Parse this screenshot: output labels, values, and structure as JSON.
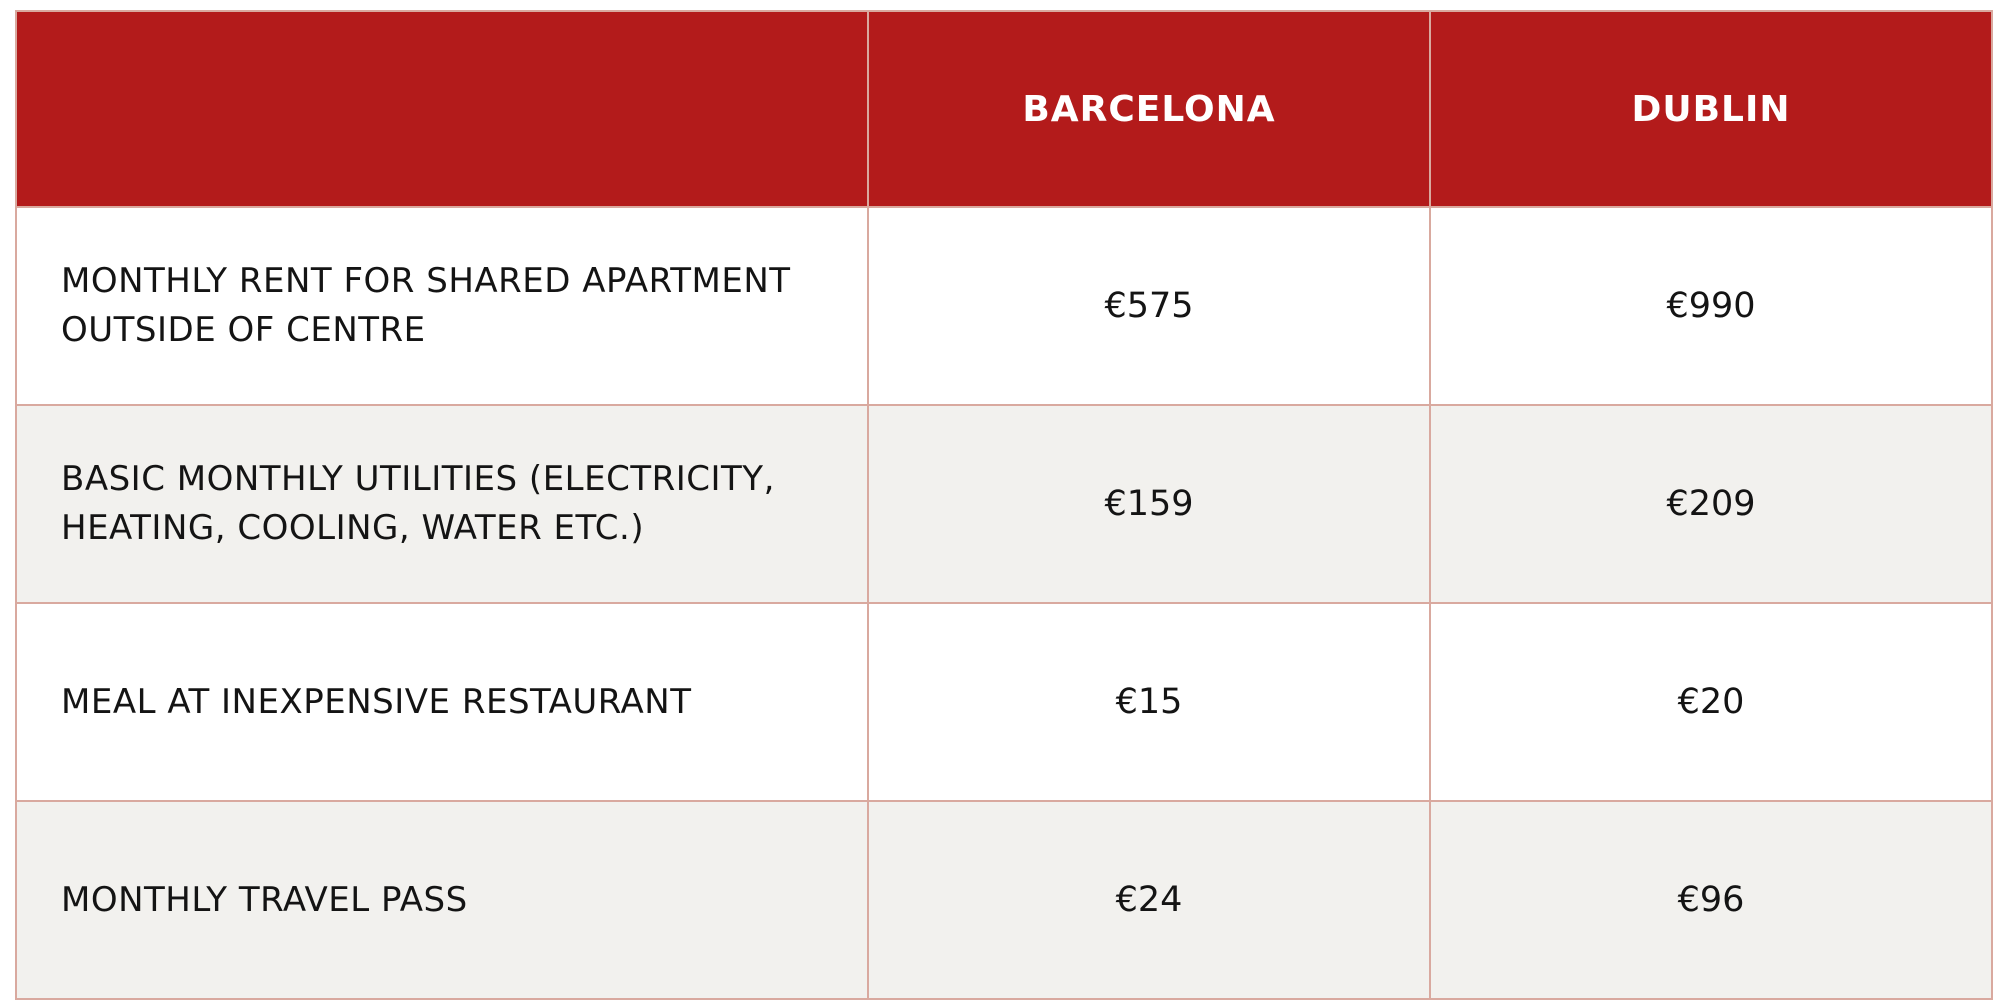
{
  "table": {
    "headers": [
      "",
      "BARCELONA",
      "DUBLIN"
    ],
    "rows": [
      {
        "label": "MONTHLY RENT FOR SHARED APARTMENT OUTSIDE OF CENTRE",
        "barcelona": "€575",
        "dublin": "€990"
      },
      {
        "label": "BASIC MONTHLY UTILITIES (ELECTRICITY, HEATING, COOLING, WATER ETC.)",
        "barcelona": "€159",
        "dublin": "€209"
      },
      {
        "label": "MEAL AT INEXPENSIVE RESTAURANT",
        "barcelona": "€15",
        "dublin": "€20"
      },
      {
        "label": "MONTHLY TRAVEL PASS",
        "barcelona": "€24",
        "dublin": "€96"
      }
    ]
  },
  "colors": {
    "header_bg": "#b31b1b",
    "header_text": "#ffffff",
    "row_alt_bg": "#f2f1ee",
    "border": "#d9a99f"
  }
}
